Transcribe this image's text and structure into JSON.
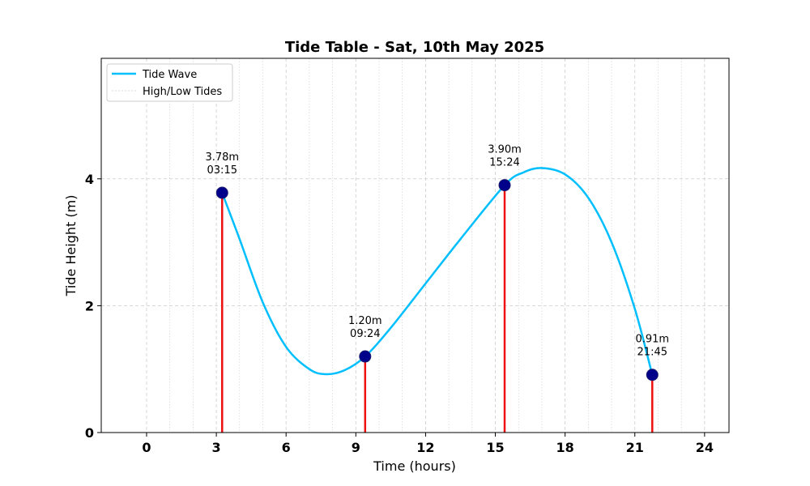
{
  "chart_data": {
    "type": "line",
    "title": "Tide Table - Sat, 10th May 2025",
    "xlabel": "Time (hours)",
    "ylabel": "Tide Height (m)",
    "xlim": [
      -1.95,
      25.05
    ],
    "ylim": [
      0,
      5.9
    ],
    "xticks": [
      0,
      3,
      6,
      9,
      12,
      15,
      18,
      21,
      24
    ],
    "yticks": [
      0,
      2,
      4
    ],
    "grid": true,
    "minor_x_grid_step": 1,
    "legend_position": "top-left",
    "legend": [
      "Tide Wave",
      "High/Low Tides"
    ],
    "series": [
      {
        "name": "Tide Wave",
        "color": "#00bfff",
        "x": [
          3.25,
          4.0,
          5.0,
          6.0,
          7.0,
          7.7,
          8.5,
          9.4,
          10.5,
          12.0,
          13.5,
          15.4,
          16.2,
          17.0,
          18.0,
          19.0,
          20.0,
          21.0,
          21.75
        ],
        "y": [
          3.78,
          3.05,
          2.05,
          1.35,
          1.0,
          0.92,
          0.98,
          1.2,
          1.65,
          2.35,
          3.05,
          3.9,
          4.1,
          4.17,
          4.07,
          3.7,
          3.0,
          1.95,
          0.91
        ]
      }
    ],
    "tides": [
      {
        "time": 3.25,
        "height": 3.78,
        "height_label": "3.78m",
        "time_label": "03:15"
      },
      {
        "time": 9.4,
        "height": 1.2,
        "height_label": "1.20m",
        "time_label": "09:24"
      },
      {
        "time": 15.4,
        "height": 3.9,
        "height_label": "3.90m",
        "time_label": "15:24"
      },
      {
        "time": 21.75,
        "height": 0.91,
        "height_label": "0.91m",
        "time_label": "21:45"
      }
    ],
    "colors": {
      "stem": "#ee1111",
      "marker": "#00008b",
      "grid": "#cccccc"
    }
  }
}
